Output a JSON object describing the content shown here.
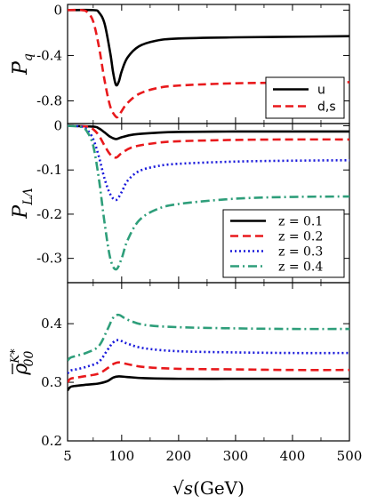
{
  "chart_data": [
    {
      "type": "line",
      "ylabel_main": "P",
      "ylabel_sub": "q",
      "ylabel_bar": true,
      "xlim": [
        5,
        500
      ],
      "ylim": [
        -1.0,
        0.05
      ],
      "yticks": [
        0,
        -0.4,
        -0.8
      ],
      "ytick_labels": [
        "0",
        "-0.4",
        "-0.8"
      ],
      "legend": "bottom-right",
      "series": [
        {
          "name": "u",
          "color": "#000000",
          "dash": "solid",
          "x": [
            5,
            50,
            60,
            70,
            80,
            85,
            90,
            95,
            100,
            110,
            130,
            160,
            200,
            300,
            400,
            500
          ],
          "y": [
            0,
            0,
            -0.02,
            -0.12,
            -0.38,
            -0.55,
            -0.66,
            -0.63,
            -0.54,
            -0.42,
            -0.32,
            -0.27,
            -0.25,
            -0.24,
            -0.235,
            -0.23
          ]
        },
        {
          "name": "d,s",
          "color": "#e8191c",
          "dash": "dashed",
          "x": [
            5,
            30,
            40,
            50,
            60,
            70,
            80,
            90,
            95,
            100,
            110,
            130,
            160,
            200,
            300,
            400,
            500
          ],
          "y": [
            0,
            0,
            -0.02,
            -0.1,
            -0.32,
            -0.62,
            -0.85,
            -0.94,
            -0.93,
            -0.89,
            -0.82,
            -0.74,
            -0.69,
            -0.665,
            -0.645,
            -0.64,
            -0.635
          ]
        }
      ]
    },
    {
      "type": "line",
      "ylabel_main": "P",
      "ylabel_sub": "LΛ",
      "xlim": [
        5,
        500
      ],
      "ylim": [
        -0.355,
        0.005
      ],
      "yticks": [
        0,
        -0.1,
        -0.2,
        -0.3
      ],
      "ytick_labels": [
        "0",
        "-0.1",
        "-0.2",
        "-0.3"
      ],
      "legend": "bottom-right",
      "series": [
        {
          "name": "z = 0.1",
          "color": "#000000",
          "dash": "solid",
          "x": [
            5,
            50,
            60,
            70,
            80,
            90,
            100,
            120,
            160,
            200,
            300,
            400,
            500
          ],
          "y": [
            0,
            -0.002,
            -0.006,
            -0.015,
            -0.025,
            -0.03,
            -0.026,
            -0.02,
            -0.016,
            -0.014,
            -0.013,
            -0.013,
            -0.013
          ]
        },
        {
          "name": "z = 0.2",
          "color": "#e8191c",
          "dash": "dashed",
          "x": [
            5,
            40,
            50,
            60,
            70,
            80,
            90,
            100,
            120,
            160,
            200,
            300,
            400,
            500
          ],
          "y": [
            0,
            -0.002,
            -0.008,
            -0.022,
            -0.045,
            -0.065,
            -0.072,
            -0.062,
            -0.048,
            -0.039,
            -0.035,
            -0.032,
            -0.031,
            -0.031
          ]
        },
        {
          "name": "z = 0.3",
          "color": "#1a1adb",
          "dash": "dotted",
          "x": [
            5,
            30,
            40,
            50,
            60,
            70,
            80,
            90,
            100,
            110,
            130,
            160,
            200,
            300,
            400,
            500
          ],
          "y": [
            0,
            -0.002,
            -0.01,
            -0.03,
            -0.07,
            -0.12,
            -0.155,
            -0.168,
            -0.15,
            -0.125,
            -0.103,
            -0.092,
            -0.086,
            -0.081,
            -0.079,
            -0.078
          ]
        },
        {
          "name": "z = 0.4",
          "color": "#2e9e7a",
          "dash": "dashdot",
          "x": [
            5,
            30,
            40,
            50,
            60,
            70,
            80,
            90,
            100,
            110,
            130,
            160,
            200,
            300,
            400,
            500
          ],
          "y": [
            0,
            -0.003,
            -0.015,
            -0.045,
            -0.12,
            -0.22,
            -0.3,
            -0.325,
            -0.3,
            -0.26,
            -0.215,
            -0.19,
            -0.177,
            -0.165,
            -0.161,
            -0.16
          ]
        }
      ]
    },
    {
      "type": "line",
      "ylabel_main": "ρ",
      "ylabel_sub": "00",
      "ylabel_sup": "K*",
      "ylabel_bar": true,
      "xlabel_pre": "√",
      "xlabel_s": "s",
      "xlabel_post": "(GeV)",
      "xlim": [
        5,
        500
      ],
      "ylim": [
        0.2,
        0.47
      ],
      "xticks": [
        5,
        100,
        200,
        300,
        400,
        500
      ],
      "xtick_labels": [
        "5",
        "100",
        "200",
        "300",
        "400",
        "500"
      ],
      "yticks": [
        0.2,
        0.3,
        0.4
      ],
      "ytick_labels": [
        "0.2",
        "0.3",
        "0.4"
      ],
      "series": [
        {
          "name": "z = 0.1",
          "color": "#000000",
          "dash": "solid",
          "x": [
            5,
            10,
            20,
            40,
            60,
            75,
            85,
            95,
            110,
            140,
            200,
            300,
            400,
            500
          ],
          "y": [
            0.286,
            0.292,
            0.294,
            0.296,
            0.298,
            0.302,
            0.308,
            0.31,
            0.309,
            0.307,
            0.306,
            0.306,
            0.306,
            0.306
          ]
        },
        {
          "name": "z = 0.2",
          "color": "#e8191c",
          "dash": "dashed",
          "x": [
            5,
            10,
            20,
            40,
            60,
            75,
            85,
            95,
            110,
            140,
            200,
            300,
            400,
            500
          ],
          "y": [
            0.3,
            0.306,
            0.308,
            0.311,
            0.315,
            0.324,
            0.331,
            0.334,
            0.331,
            0.326,
            0.323,
            0.322,
            0.321,
            0.321
          ]
        },
        {
          "name": "z = 0.3",
          "color": "#1a1adb",
          "dash": "dotted",
          "x": [
            5,
            10,
            20,
            40,
            60,
            75,
            85,
            95,
            110,
            140,
            200,
            300,
            400,
            500
          ],
          "y": [
            0.315,
            0.32,
            0.322,
            0.327,
            0.335,
            0.355,
            0.368,
            0.372,
            0.366,
            0.358,
            0.353,
            0.351,
            0.35,
            0.35
          ]
        },
        {
          "name": "z = 0.4",
          "color": "#2e9e7a",
          "dash": "dashdot",
          "x": [
            5,
            10,
            20,
            40,
            60,
            75,
            85,
            95,
            110,
            140,
            200,
            300,
            400,
            500
          ],
          "y": [
            0.337,
            0.342,
            0.345,
            0.351,
            0.362,
            0.39,
            0.41,
            0.415,
            0.407,
            0.398,
            0.394,
            0.392,
            0.391,
            0.391
          ]
        }
      ]
    }
  ]
}
